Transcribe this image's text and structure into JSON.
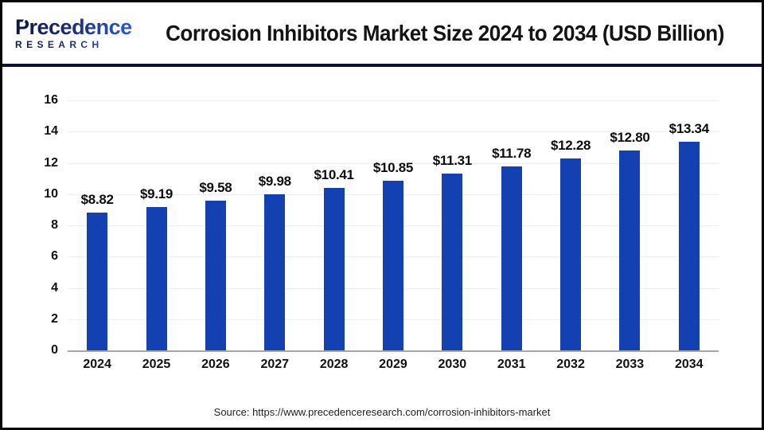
{
  "header": {
    "logo_name": "Precedence",
    "logo_sub": "RESEARCH",
    "title": "Corrosion Inhibitors Market Size 2024 to 2034 (USD Billion)"
  },
  "chart_data": {
    "type": "bar",
    "title": "Corrosion Inhibitors Market Size 2024 to 2034 (USD Billion)",
    "categories": [
      "2024",
      "2025",
      "2026",
      "2027",
      "2028",
      "2029",
      "2030",
      "2031",
      "2032",
      "2033",
      "2034"
    ],
    "values": [
      8.82,
      9.19,
      9.58,
      9.98,
      10.41,
      10.85,
      11.31,
      11.78,
      12.28,
      12.8,
      13.34
    ],
    "value_labels": [
      "$8.82",
      "$9.19",
      "$9.58",
      "$9.98",
      "$10.41",
      "$10.85",
      "$11.31",
      "$11.78",
      "$12.28",
      "$12.80",
      "$13.34"
    ],
    "xlabel": "",
    "ylabel": "",
    "ylim": [
      0,
      16
    ],
    "ytick_step": 2,
    "grid": true,
    "legend_position": "none",
    "bar_color": "#1341b2"
  },
  "footer": {
    "source": "Source: https://www.precedenceresearch.com/corrosion-inhibitors-market"
  },
  "colors": {
    "bar": "#1341b2",
    "separator": "#0e1238",
    "axis_baseline": "#a6a6a6",
    "gridline": "#f0f0f0",
    "logo_navy": "#0e1740",
    "logo_blue": "#2f62d9"
  }
}
